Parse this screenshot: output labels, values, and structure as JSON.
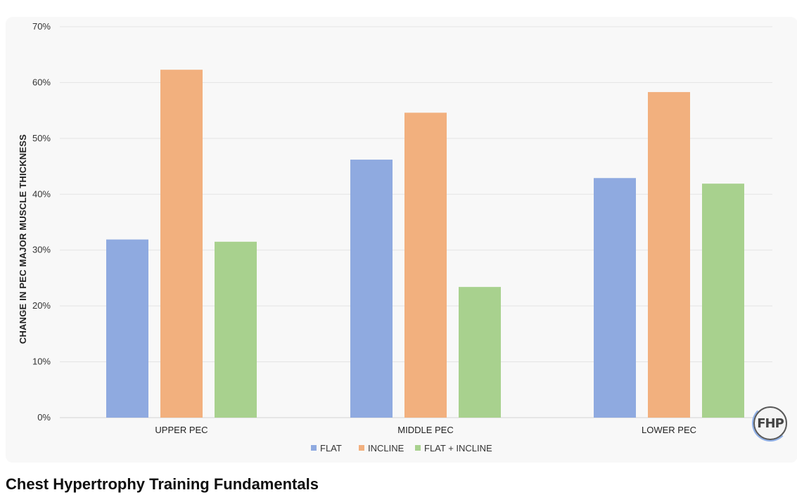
{
  "video": {
    "title": "Chest Hypertrophy Training Fundamentals",
    "watermark": "FHP"
  },
  "chart_data": {
    "type": "bar",
    "title": "",
    "xlabel": "",
    "ylabel": "CHANGE IN PEC MAJOR MUSCLE THICKNESS",
    "ylim": [
      0,
      70
    ],
    "yticks": [
      "0%",
      "10%",
      "20%",
      "30%",
      "40%",
      "50%",
      "60%",
      "70%"
    ],
    "grid": true,
    "legend_position": "bottom",
    "categories": [
      "UPPER PEC",
      "MIDDLE PEC",
      "LOWER PEC"
    ],
    "series": [
      {
        "name": "FLAT",
        "color": "#8faae0",
        "values": [
          31.9,
          46.2,
          42.9
        ]
      },
      {
        "name": "INCLINE",
        "color": "#f2b07e",
        "values": [
          62.3,
          54.6,
          58.3
        ]
      },
      {
        "name": "FLAT + INCLINE",
        "color": "#a8d18e",
        "values": [
          31.5,
          23.4,
          41.9
        ]
      }
    ]
  }
}
